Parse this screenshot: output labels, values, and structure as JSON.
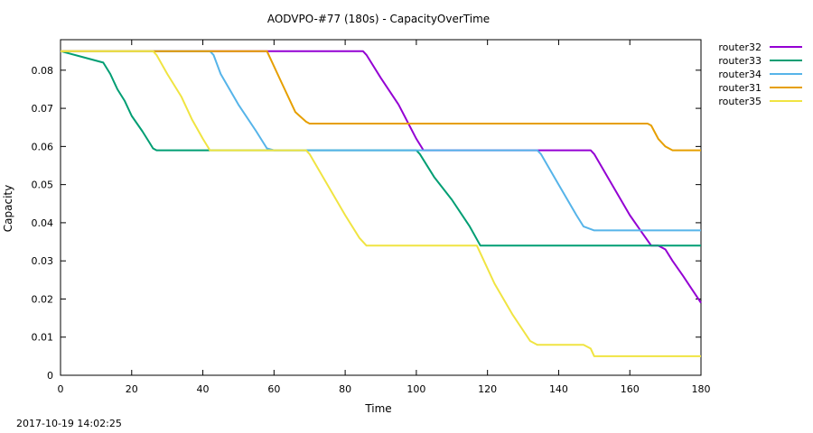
{
  "chart_data": {
    "type": "line",
    "title": "AODVPO-#77 (180s) - CapacityOverTime",
    "xlabel": "Time",
    "ylabel": "Capacity",
    "xlim": [
      0,
      180
    ],
    "ylim": [
      0,
      0.088
    ],
    "xticks": [
      0,
      20,
      40,
      60,
      80,
      100,
      120,
      140,
      160,
      180
    ],
    "yticks": [
      0,
      0.01,
      0.02,
      0.03,
      0.04,
      0.05,
      0.06,
      0.07,
      0.08
    ],
    "ytick_labels": [
      "0",
      "0.01",
      "0.02",
      "0.03",
      "0.04",
      "0.05",
      "0.06",
      "0.07",
      "0.08"
    ],
    "legend_position": "top-right-outside",
    "grid": false,
    "series": [
      {
        "name": "router32",
        "color": "#9400d3",
        "x": [
          0,
          84,
          85,
          86,
          90,
          95,
          100,
          102,
          110,
          120,
          130,
          135,
          149,
          150,
          155,
          160,
          163,
          166,
          168,
          170,
          172,
          175,
          180
        ],
        "y": [
          0.085,
          0.085,
          0.085,
          0.084,
          0.078,
          0.071,
          0.062,
          0.059,
          0.059,
          0.059,
          0.059,
          0.059,
          0.059,
          0.058,
          0.05,
          0.042,
          0.038,
          0.034,
          0.034,
          0.033,
          0.03,
          0.026,
          0.019
        ]
      },
      {
        "name": "router33",
        "color": "#009e73",
        "x": [
          0,
          2,
          6,
          12,
          14,
          16,
          18,
          20,
          23,
          25,
          26,
          27,
          30,
          40,
          60,
          80,
          100,
          101,
          105,
          110,
          115,
          118,
          130,
          150,
          170,
          180
        ],
        "y": [
          0.085,
          0.0845,
          0.0835,
          0.082,
          0.079,
          0.075,
          0.072,
          0.068,
          0.064,
          0.061,
          0.0595,
          0.059,
          0.059,
          0.059,
          0.059,
          0.059,
          0.059,
          0.058,
          0.052,
          0.046,
          0.039,
          0.034,
          0.034,
          0.034,
          0.034,
          0.034
        ]
      },
      {
        "name": "router34",
        "color": "#56b4e9",
        "x": [
          0,
          42,
          43,
          45,
          50,
          55,
          57,
          58,
          60,
          80,
          100,
          120,
          134,
          135,
          140,
          145,
          147,
          150,
          160,
          180
        ],
        "y": [
          0.085,
          0.085,
          0.084,
          0.079,
          0.071,
          0.064,
          0.061,
          0.0595,
          0.059,
          0.059,
          0.059,
          0.059,
          0.059,
          0.058,
          0.05,
          0.042,
          0.039,
          0.038,
          0.038,
          0.038
        ]
      },
      {
        "name": "router31",
        "color": "#e69f00",
        "x": [
          0,
          58,
          59,
          62,
          66,
          69,
          70,
          80,
          100,
          120,
          140,
          165,
          166,
          168,
          170,
          172,
          175,
          180
        ],
        "y": [
          0.085,
          0.085,
          0.083,
          0.077,
          0.069,
          0.0665,
          0.066,
          0.066,
          0.066,
          0.066,
          0.066,
          0.066,
          0.0655,
          0.062,
          0.06,
          0.059,
          0.059,
          0.059
        ]
      },
      {
        "name": "router35",
        "color": "#f0e442",
        "x": [
          0,
          26,
          27,
          30,
          34,
          37,
          40,
          42,
          45,
          60,
          69,
          70,
          75,
          80,
          84,
          86,
          90,
          110,
          117,
          118,
          122,
          127,
          132,
          134,
          140,
          147,
          149,
          150,
          155,
          170,
          180
        ],
        "y": [
          0.085,
          0.085,
          0.084,
          0.079,
          0.073,
          0.067,
          0.062,
          0.059,
          0.059,
          0.059,
          0.059,
          0.058,
          0.05,
          0.042,
          0.036,
          0.034,
          0.034,
          0.034,
          0.034,
          0.032,
          0.024,
          0.016,
          0.009,
          0.008,
          0.008,
          0.008,
          0.007,
          0.005,
          0.005,
          0.005,
          0.005
        ]
      }
    ]
  },
  "footer": {
    "timestamp": "2017-10-19 14:02:25"
  }
}
